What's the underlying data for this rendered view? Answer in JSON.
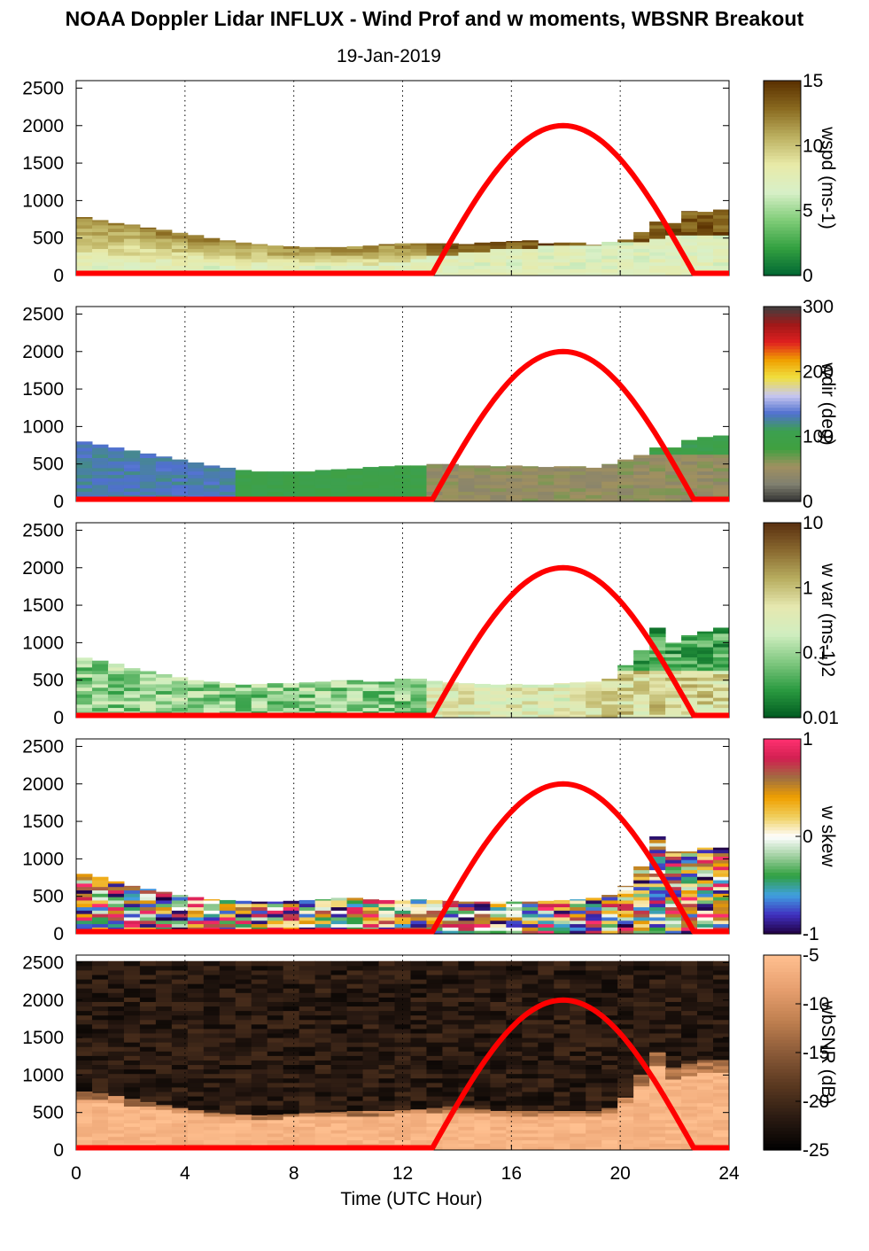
{
  "header": {
    "title": "NOAA Doppler Lidar INFLUX - Wind Prof and w moments, WBSNR Breakout",
    "date": "19-Jan-2019"
  },
  "chart_data": {
    "type": "heatmap",
    "x": {
      "label": "Time (UTC Hour)",
      "range": [
        0,
        24
      ],
      "ticks": [
        0,
        4,
        8,
        12,
        16,
        20,
        24
      ],
      "grid_at": [
        4,
        8,
        12,
        16,
        20,
        24
      ]
    },
    "y": {
      "range": [
        0,
        2600
      ],
      "ticks": [
        0,
        500,
        1000,
        1500,
        2000,
        2500
      ]
    },
    "overlay_curve": {
      "color": "#ff0000",
      "start_hour": 13.1,
      "peak_hour": 17.9,
      "end_hour": 22.7,
      "peak_value": 2000,
      "base_value": 30
    },
    "panels": [
      {
        "id": "wspd",
        "colorbar_label": "wspd (ms-1)",
        "colorbar_ticks": [
          "15",
          "10",
          "5",
          "0"
        ],
        "colormap": [
          "#006633",
          "#33a040",
          "#80cc78",
          "#d8f0c8",
          "#e8eaa8",
          "#bcb060",
          "#8a6a20",
          "#5a3000"
        ],
        "data_top_m": [
          780,
          740,
          700,
          680,
          640,
          610,
          570,
          540,
          500,
          470,
          440,
          420,
          400,
          390,
          380,
          380,
          380,
          390,
          400,
          420,
          430,
          430,
          430,
          430,
          420,
          440,
          450,
          460,
          470,
          430,
          440,
          440,
          410,
          450,
          480,
          580,
          720,
          700,
          860,
          850,
          880
        ],
        "mixed_top_m": [
          200,
          200,
          180,
          160,
          150,
          140,
          130,
          120,
          110,
          100,
          100,
          100,
          100,
          100,
          100,
          100,
          110,
          120,
          130,
          140,
          160,
          200,
          240,
          260,
          280,
          300,
          320,
          350,
          360,
          380,
          390,
          400,
          400,
          420,
          440,
          450,
          480,
          500,
          520,
          520,
          540
        ]
      },
      {
        "id": "wdir",
        "colorbar_label": "wdir (deg)",
        "colorbar_ticks": [
          "300",
          "200",
          "100",
          "0"
        ],
        "colormap": [
          "#303030",
          "#808070",
          "#a09060",
          "#40a040",
          "#3ca050",
          "#5070d0",
          "#c8c8f0",
          "#f0e040",
          "#f0a000",
          "#e02020",
          "#a01818",
          "#404040"
        ],
        "data_top_m": [
          800,
          760,
          720,
          680,
          640,
          600,
          560,
          520,
          480,
          450,
          420,
          400,
          400,
          400,
          400,
          420,
          430,
          440,
          460,
          470,
          480,
          480,
          500,
          500,
          480,
          480,
          470,
          480,
          470,
          460,
          470,
          470,
          450,
          500,
          560,
          620,
          720,
          720,
          820,
          860,
          880
        ]
      },
      {
        "id": "wvar",
        "colorbar_label": "w var (ms-1)2",
        "colorbar_ticks": [
          "10",
          "1",
          "0.1",
          "0.01"
        ],
        "colormap": [
          "#005a20",
          "#2a9a40",
          "#80c880",
          "#d0eec0",
          "#e6e8b0",
          "#b8ae60",
          "#8a6a30",
          "#5a3010"
        ],
        "data_top_m": [
          800,
          760,
          720,
          660,
          620,
          580,
          540,
          500,
          480,
          460,
          440,
          450,
          460,
          460,
          470,
          480,
          500,
          500,
          480,
          480,
          520,
          520,
          490,
          470,
          460,
          450,
          440,
          450,
          440,
          440,
          460,
          470,
          480,
          520,
          700,
          900,
          1200,
          1000,
          1100,
          1150,
          1200
        ]
      },
      {
        "id": "wskew",
        "colorbar_label": "w skew",
        "colorbar_ticks": [
          "1",
          "0",
          "-1"
        ],
        "colormap": [
          "#200040",
          "#4030c0",
          "#40a0e0",
          "#30a040",
          "#a0d0a0",
          "#ffffff",
          "#f0d060",
          "#f0a000",
          "#a07040",
          "#d02050",
          "#ff3070"
        ],
        "data_top_m": [
          800,
          760,
          700,
          640,
          600,
          560,
          520,
          490,
          460,
          450,
          440,
          430,
          430,
          440,
          450,
          460,
          480,
          480,
          460,
          450,
          460,
          460,
          450,
          440,
          430,
          430,
          430,
          430,
          430,
          440,
          450,
          460,
          480,
          520,
          640,
          900,
          1300,
          1100,
          1100,
          1150,
          1150
        ]
      },
      {
        "id": "wbsnr",
        "colorbar_label": "wbSNR (dB)",
        "colorbar_ticks": [
          "-5",
          "-10",
          "-15",
          "-20",
          "-25"
        ],
        "colormap": [
          "#000000",
          "#2a1a12",
          "#5a3820",
          "#8a5a38",
          "#c08050",
          "#e8a070",
          "#ffc090"
        ],
        "data_top_m": [
          780,
          760,
          720,
          680,
          640,
          600,
          560,
          530,
          500,
          480,
          470,
          460,
          470,
          480,
          490,
          500,
          510,
          520,
          520,
          520,
          530,
          540,
          560,
          580,
          560,
          540,
          520,
          520,
          520,
          520,
          520,
          520,
          520,
          560,
          700,
          1000,
          1300,
          1100,
          1150,
          1200,
          1200
        ]
      }
    ]
  }
}
